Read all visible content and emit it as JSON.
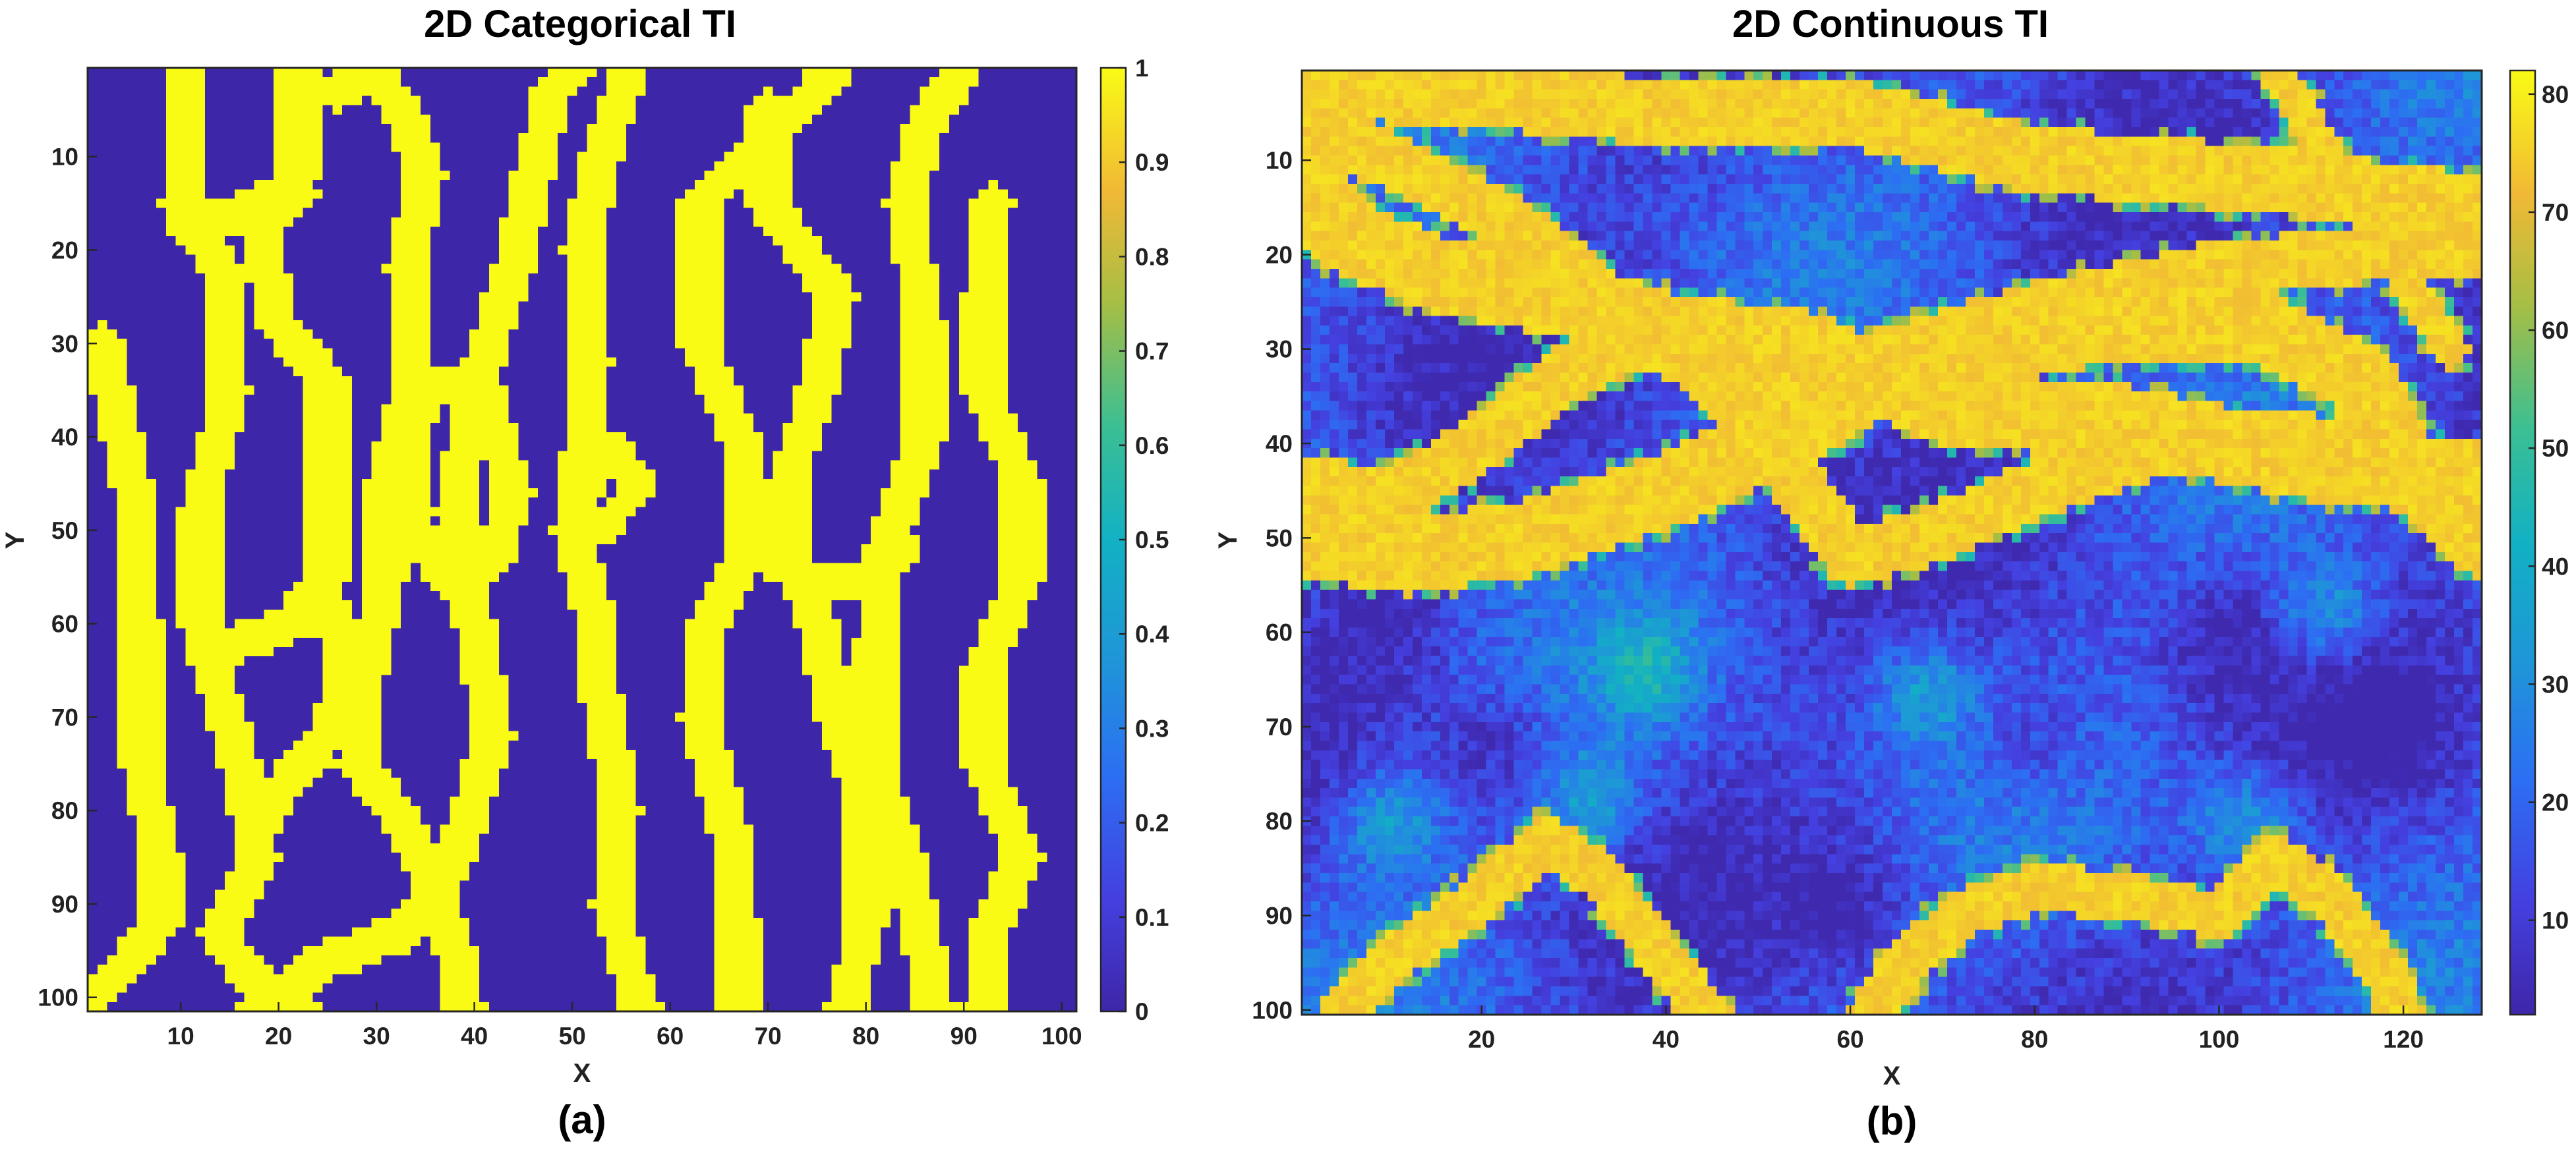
{
  "colors": {
    "low": "#3e26a8",
    "mid_blue": "#1f8fe0",
    "teal": "#2bbd9b",
    "green": "#5fc35a",
    "orange": "#f9b53a",
    "high": "#f9f21e",
    "axis": "#262626"
  },
  "chart_data": [
    {
      "type": "heatmap",
      "title": "2D Categorical TI",
      "panel_label": "(a)",
      "xlabel": "X",
      "ylabel": "Y",
      "xlim": [
        0.5,
        101.5
      ],
      "ylim": [
        0.5,
        101.5
      ],
      "y_reversed": true,
      "grid_size": [
        101,
        101
      ],
      "x_ticks": [
        "10",
        "20",
        "30",
        "40",
        "50",
        "60",
        "70",
        "80",
        "90",
        "100"
      ],
      "y_ticks": [
        "10",
        "20",
        "30",
        "40",
        "50",
        "60",
        "70",
        "80",
        "90",
        "100"
      ],
      "values_description_categories": [
        0,
        1
      ],
      "background_value": 0,
      "channel_value": 1,
      "colorbar": {
        "min": 0,
        "max": 1,
        "ticks": [
          "0",
          "0.1",
          "0.2",
          "0.3",
          "0.4",
          "0.5",
          "0.6",
          "0.7",
          "0.8",
          "0.9",
          "1"
        ]
      },
      "channels": [
        {
          "half_width": 2,
          "points": [
            [
              2,
              30
            ],
            [
              5,
              45
            ],
            [
              6,
              60
            ],
            [
              6,
              75
            ],
            [
              8,
              85
            ],
            [
              8,
              92
            ],
            [
              4,
              97
            ],
            [
              1,
              100
            ]
          ]
        },
        {
          "half_width": 2,
          "points": [
            [
              11,
              0
            ],
            [
              10,
              15
            ],
            [
              14,
              22
            ],
            [
              15,
              35
            ],
            [
              12,
              48
            ],
            [
              12,
              60
            ],
            [
              16,
              75
            ],
            [
              18,
              85
            ],
            [
              14,
              93
            ],
            [
              17,
              98
            ],
            [
              22,
              101
            ]
          ]
        },
        {
          "half_width": 2,
          "points": [
            [
              18,
              101
            ],
            [
              25,
              96
            ],
            [
              33,
              93
            ],
            [
              38,
              85
            ],
            [
              42,
              72
            ],
            [
              40,
              60
            ],
            [
              38,
              48
            ],
            [
              40,
              35
            ],
            [
              44,
              22
            ],
            [
              46,
              12
            ],
            [
              48,
              3
            ],
            [
              51,
              0
            ]
          ]
        },
        {
          "half_width": 2,
          "points": [
            [
              22,
              0
            ],
            [
              22,
              12
            ],
            [
              18,
              18
            ],
            [
              20,
              28
            ],
            [
              25,
              34
            ],
            [
              25,
              45
            ],
            [
              25,
              55
            ],
            [
              21,
              60
            ]
          ]
        },
        {
          "half_width": 2,
          "points": [
            [
              11,
              18
            ],
            [
              18,
              15
            ],
            [
              22,
              14
            ]
          ]
        },
        {
          "half_width": 2,
          "points": [
            [
              14,
              63
            ],
            [
              21,
              60
            ],
            [
              25,
              58
            ],
            [
              27,
              65
            ],
            [
              25,
              72
            ],
            [
              20,
              78
            ],
            [
              18,
              82
            ]
          ]
        },
        {
          "half_width": 2,
          "points": [
            [
              26,
              3
            ],
            [
              30,
              1
            ],
            [
              33,
              6
            ],
            [
              35,
              12
            ],
            [
              33,
              22
            ],
            [
              34,
              33
            ],
            [
              31,
              45
            ],
            [
              31,
              55
            ],
            [
              29,
              65
            ],
            [
              28,
              75
            ],
            [
              32,
              80
            ],
            [
              36,
              88
            ],
            [
              38,
              95
            ],
            [
              39,
              101
            ]
          ]
        },
        {
          "half_width": 2,
          "points": [
            [
              35,
              34
            ],
            [
              41,
              35
            ],
            [
              44,
              46
            ],
            [
              42,
              53
            ],
            [
              37,
              55
            ],
            [
              34,
              50
            ],
            [
              33,
              42
            ],
            [
              35,
              35
            ]
          ]
        },
        {
          "half_width": 2,
          "points": [
            [
              56,
              0
            ],
            [
              53,
              10
            ],
            [
              51,
              20
            ],
            [
              52,
              32
            ],
            [
              51,
              42
            ],
            [
              50,
              50
            ],
            [
              52,
              58
            ],
            [
              53,
              68
            ],
            [
              55,
              80
            ],
            [
              54,
              90
            ],
            [
              57,
              101
            ]
          ]
        },
        {
          "half_width": 1.7,
          "points": [
            [
              50,
              48
            ],
            [
              54,
              41
            ],
            [
              57,
              45
            ],
            [
              53,
              50
            ]
          ]
        },
        {
          "half_width": 2,
          "points": [
            [
              63,
              15
            ],
            [
              70,
              8
            ],
            [
              75,
              3
            ],
            [
              77,
              0
            ]
          ]
        },
        {
          "half_width": 2,
          "points": [
            [
              63,
              15
            ],
            [
              63,
              30
            ],
            [
              67,
              40
            ],
            [
              68,
              52
            ],
            [
              64,
              60
            ],
            [
              63,
              70
            ],
            [
              66,
              82
            ],
            [
              67,
              92
            ],
            [
              67,
              101
            ]
          ]
        },
        {
          "half_width": 2,
          "points": [
            [
              70,
              5
            ],
            [
              70,
              15
            ],
            [
              77,
              25
            ],
            [
              75,
              35
            ],
            [
              72,
              45
            ],
            [
              72,
              52
            ],
            [
              75,
              60
            ],
            [
              77,
              70
            ],
            [
              80,
              80
            ],
            [
              80,
              92
            ],
            [
              78,
              101
            ]
          ]
        },
        {
          "half_width": 2,
          "points": [
            [
              90,
              0
            ],
            [
              86,
              7
            ],
            [
              84,
              15
            ],
            [
              86,
              28
            ],
            [
              86,
              40
            ],
            [
              82,
              52
            ],
            [
              81,
              62
            ],
            [
              81,
              75
            ],
            [
              84,
              85
            ],
            [
              86,
              95
            ],
            [
              87,
              101
            ]
          ]
        },
        {
          "half_width": 2,
          "points": [
            [
              93,
              15
            ],
            [
              92,
              25
            ],
            [
              92,
              35
            ],
            [
              96,
              45
            ],
            [
              96,
              55
            ],
            [
              92,
              65
            ],
            [
              92,
              75
            ],
            [
              96,
              85
            ],
            [
              93,
              92
            ],
            [
              92,
              101
            ]
          ]
        },
        {
          "half_width": 1.8,
          "points": [
            [
              71,
              54
            ],
            [
              78,
              56
            ],
            [
              84,
              52
            ]
          ]
        }
      ]
    },
    {
      "type": "heatmap",
      "title": "2D Continuous TI",
      "panel_label": "(b)",
      "xlabel": "X",
      "ylabel": "Y",
      "xlim": [
        0.5,
        128.5
      ],
      "ylim": [
        0.5,
        100.5
      ],
      "y_reversed": true,
      "grid_size": [
        128,
        100
      ],
      "x_ticks": [
        "20",
        "40",
        "60",
        "80",
        "100",
        "120"
      ],
      "y_ticks": [
        "10",
        "20",
        "30",
        "40",
        "50",
        "60",
        "70",
        "80",
        "90",
        "100"
      ],
      "background_range": [
        3,
        40
      ],
      "channel_range": [
        65,
        78
      ],
      "colorbar": {
        "min": 2,
        "max": 82,
        "ticks": [
          "10",
          "20",
          "30",
          "40",
          "50",
          "60",
          "70",
          "80"
        ]
      },
      "channels": [
        {
          "half_width": 3.5,
          "points": [
            [
              0,
              2
            ],
            [
              20,
              3
            ],
            [
              40,
              5
            ],
            [
              60,
              5
            ],
            [
              80,
              10
            ],
            [
              105,
              12
            ],
            [
              128,
              15
            ]
          ]
        },
        {
          "half_width": 3,
          "points": [
            [
              0,
              6
            ],
            [
              10,
              10
            ],
            [
              22,
              16
            ],
            [
              30,
              22
            ],
            [
              40,
              30
            ],
            [
              50,
              33
            ],
            [
              60,
              32
            ],
            [
              80,
              26
            ],
            [
              98,
              22
            ],
            [
              115,
              20
            ],
            [
              128,
              19
            ]
          ]
        },
        {
          "half_width": 4,
          "points": [
            [
              0,
              10
            ],
            [
              5,
              18
            ],
            [
              15,
              22
            ],
            [
              30,
              25
            ],
            [
              40,
              28
            ],
            [
              55,
              30
            ],
            [
              70,
              36
            ],
            [
              90,
              38
            ],
            [
              110,
              42
            ],
            [
              128,
              44
            ]
          ]
        },
        {
          "half_width": 4,
          "points": [
            [
              0,
              50
            ],
            [
              12,
              52
            ],
            [
              25,
              50
            ],
            [
              40,
              45
            ],
            [
              55,
              38
            ],
            [
              63,
              33
            ],
            [
              75,
              30
            ],
            [
              90,
              27
            ],
            [
              105,
              28
            ],
            [
              115,
              33
            ],
            [
              120,
              42
            ],
            [
              128,
              50
            ]
          ]
        },
        {
          "half_width": 3,
          "points": [
            [
              0,
              44
            ],
            [
              10,
              46
            ],
            [
              20,
              40
            ],
            [
              30,
              32
            ],
            [
              40,
              28
            ],
            [
              48,
              36
            ],
            [
              55,
              45
            ],
            [
              60,
              52
            ],
            [
              68,
              50
            ],
            [
              80,
              45
            ],
            [
              95,
              40
            ],
            [
              110,
              40
            ],
            [
              120,
              44
            ]
          ]
        },
        {
          "half_width": 2.5,
          "points": [
            [
              5,
              100
            ],
            [
              10,
              95
            ],
            [
              20,
              88
            ],
            [
              27,
              82
            ],
            [
              33,
              86
            ],
            [
              40,
              95
            ],
            [
              45,
              101
            ]
          ]
        },
        {
          "half_width": 2.5,
          "points": [
            [
              62,
              101
            ],
            [
              66,
              95
            ],
            [
              72,
              90
            ],
            [
              80,
              87
            ],
            [
              90,
              88
            ],
            [
              100,
              90
            ],
            [
              106,
              84
            ],
            [
              112,
              88
            ],
            [
              118,
              96
            ],
            [
              120,
              101
            ]
          ]
        },
        {
          "half_width": 2,
          "points": [
            [
              106,
              0
            ],
            [
              112,
              10
            ],
            [
              120,
              22
            ],
            [
              125,
              30
            ]
          ]
        }
      ],
      "green_blobs": [
        [
          38,
          64
        ],
        [
          68,
          66
        ],
        [
          112,
          58
        ],
        [
          32,
          78
        ],
        [
          10,
          80
        ],
        [
          103,
          80
        ]
      ],
      "dark_blobs": [
        [
          22,
          72
        ],
        [
          80,
          72
        ],
        [
          60,
          88
        ],
        [
          10,
          58
        ],
        [
          100,
          60
        ],
        [
          118,
          70
        ]
      ]
    }
  ]
}
